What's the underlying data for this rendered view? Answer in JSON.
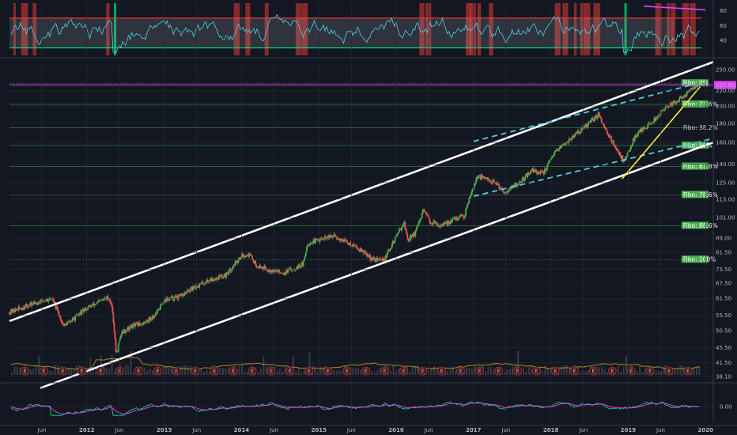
{
  "colors": {
    "background": "#131722",
    "grid": "#2a2e39",
    "candle_up": "#4caf50",
    "candle_down": "#ef5350",
    "channel": "#ffffff",
    "inner_channel": "#4dd0e1",
    "trend": "#ffeb3b",
    "fibo_line": "#4caf50",
    "current_price": "#e040fb",
    "rsi_line": "#4dd0e1",
    "rsi_band": "#b2b5be",
    "rsi_overbought": "#e53935",
    "rsi_oversold": "#00e676",
    "macd_fast": "#00e676",
    "macd_slow": "#e040fb",
    "earnings_badge": "#c62828"
  },
  "chart_data": [
    {
      "panel": "rsi",
      "type": "line",
      "y_ticks": [
        "80",
        "60",
        "40"
      ],
      "ylim": [
        20,
        90
      ],
      "overbought": 70,
      "oversold": 30,
      "grid": true
    },
    {
      "panel": "price",
      "type": "candlestick",
      "x_ticks": [
        "Jun",
        "2012",
        "Jun",
        "2013",
        "Jun",
        "2014",
        "Jun",
        "2015",
        "Jun",
        "2016",
        "Jun",
        "2017",
        "Jun",
        "2018",
        "Jun",
        "2019",
        "Jun",
        "2020"
      ],
      "x_tick_years": [
        2011.42,
        2012.0,
        2012.42,
        2013.0,
        2013.42,
        2014.0,
        2014.42,
        2015.0,
        2015.42,
        2016.0,
        2016.42,
        2017.0,
        2017.42,
        2018.0,
        2018.42,
        2019.0,
        2019.42,
        2020.0
      ],
      "xlim": [
        2011.0,
        2020.1
      ],
      "y_scale": "log",
      "ylim": [
        37,
        265
      ],
      "y_ticks": [
        "250.00",
        "220.00",
        "200.00",
        "180.00",
        "160.00",
        "140.00",
        "125.00",
        "113.00",
        "101.00",
        "89.00",
        "81.50",
        "73.50",
        "67.50",
        "61.50",
        "55.50",
        "50.50",
        "45.50",
        "41.50",
        "38.10"
      ],
      "y_tick_values": [
        250,
        220,
        200,
        180,
        160,
        140,
        125,
        113,
        101,
        89,
        81.5,
        73.5,
        67.5,
        61.5,
        55.5,
        50.5,
        45.5,
        41.5,
        38.1
      ],
      "current_price_label": "227.60",
      "current_price": 227.6,
      "price_path": [
        [
          2011.0,
          56.5
        ],
        [
          2011.35,
          60
        ],
        [
          2011.55,
          61.5
        ],
        [
          2011.7,
          52
        ],
        [
          2011.82,
          54
        ],
        [
          2012.0,
          58
        ],
        [
          2012.15,
          60
        ],
        [
          2012.28,
          62
        ],
        [
          2012.33,
          58
        ],
        [
          2012.38,
          43.5
        ],
        [
          2012.45,
          50
        ],
        [
          2012.6,
          52
        ],
        [
          2012.75,
          53
        ],
        [
          2012.9,
          56
        ],
        [
          2013.0,
          61
        ],
        [
          2013.2,
          62
        ],
        [
          2013.4,
          66
        ],
        [
          2013.6,
          69
        ],
        [
          2013.8,
          71
        ],
        [
          2014.0,
          80
        ],
        [
          2014.1,
          80.5
        ],
        [
          2014.2,
          75
        ],
        [
          2014.4,
          73
        ],
        [
          2014.55,
          72
        ],
        [
          2014.8,
          76
        ],
        [
          2014.85,
          86
        ],
        [
          2015.0,
          88
        ],
        [
          2015.2,
          90
        ],
        [
          2015.35,
          87
        ],
        [
          2015.5,
          84
        ],
        [
          2015.7,
          78
        ],
        [
          2015.85,
          78
        ],
        [
          2016.0,
          90
        ],
        [
          2016.1,
          98
        ],
        [
          2016.15,
          88
        ],
        [
          2016.25,
          92
        ],
        [
          2016.35,
          105
        ],
        [
          2016.45,
          98
        ],
        [
          2016.6,
          96
        ],
        [
          2016.75,
          100
        ],
        [
          2016.88,
          102
        ],
        [
          2016.95,
          115
        ],
        [
          2017.05,
          130
        ],
        [
          2017.15,
          128
        ],
        [
          2017.3,
          124
        ],
        [
          2017.4,
          118
        ],
        [
          2017.6,
          125
        ],
        [
          2017.75,
          135
        ],
        [
          2017.9,
          132
        ],
        [
          2018.05,
          150
        ],
        [
          2018.2,
          160
        ],
        [
          2018.35,
          170
        ],
        [
          2018.5,
          180
        ],
        [
          2018.62,
          190
        ],
        [
          2018.7,
          175
        ],
        [
          2018.8,
          160
        ],
        [
          2018.88,
          150
        ],
        [
          2018.95,
          142
        ],
        [
          2019.05,
          160
        ],
        [
          2019.15,
          172
        ],
        [
          2019.3,
          180
        ],
        [
          2019.45,
          195
        ],
        [
          2019.6,
          205
        ],
        [
          2019.75,
          215
        ],
        [
          2019.85,
          225
        ],
        [
          2019.9,
          227.6
        ]
      ],
      "channel_lines": [
        {
          "name": "upper-channel",
          "points": [
            [
              2011.0,
              53.5
            ],
            [
              2020.1,
              262
            ]
          ]
        },
        {
          "name": "lower-channel",
          "points": [
            [
              2011.4,
              35.5
            ],
            [
              2020.1,
              160
            ]
          ]
        }
      ],
      "inner_channel_lines": [
        {
          "name": "inner-upper",
          "points": [
            [
              2017.0,
              161
            ],
            [
              2019.8,
              227
            ]
          ]
        },
        {
          "name": "inner-lower",
          "points": [
            [
              2017.0,
              115
            ],
            [
              2020.1,
              164
            ]
          ]
        }
      ],
      "trend_line": {
        "points": [
          [
            2018.92,
            128
          ],
          [
            2019.93,
            225
          ]
        ]
      },
      "fibo": [
        {
          "label": "Fibo:  0%",
          "price": 230,
          "style": "filled"
        },
        {
          "label": "Fibo: 23.6%",
          "price": 202,
          "style": "filled"
        },
        {
          "label": "Fibo: 38.2%",
          "price": 175,
          "style": "plain"
        },
        {
          "label": "Fibo:  50%",
          "price": 157,
          "style": "filled"
        },
        {
          "label": "Fibo: 61.8%",
          "price": 138,
          "style": "filled"
        },
        {
          "label": "Fibo: 78.6%",
          "price": 116,
          "style": "filled"
        },
        {
          "label": "Fibo: 88.6%",
          "price": 96,
          "style": "filled"
        },
        {
          "label": "Fibo:  100%",
          "price": 78,
          "style": "filled"
        }
      ],
      "earnings_marker": "E",
      "earnings_count": 36,
      "grid": true
    },
    {
      "panel": "macd",
      "type": "line",
      "y_ticks": [
        "0.00"
      ],
      "grid": true
    }
  ]
}
